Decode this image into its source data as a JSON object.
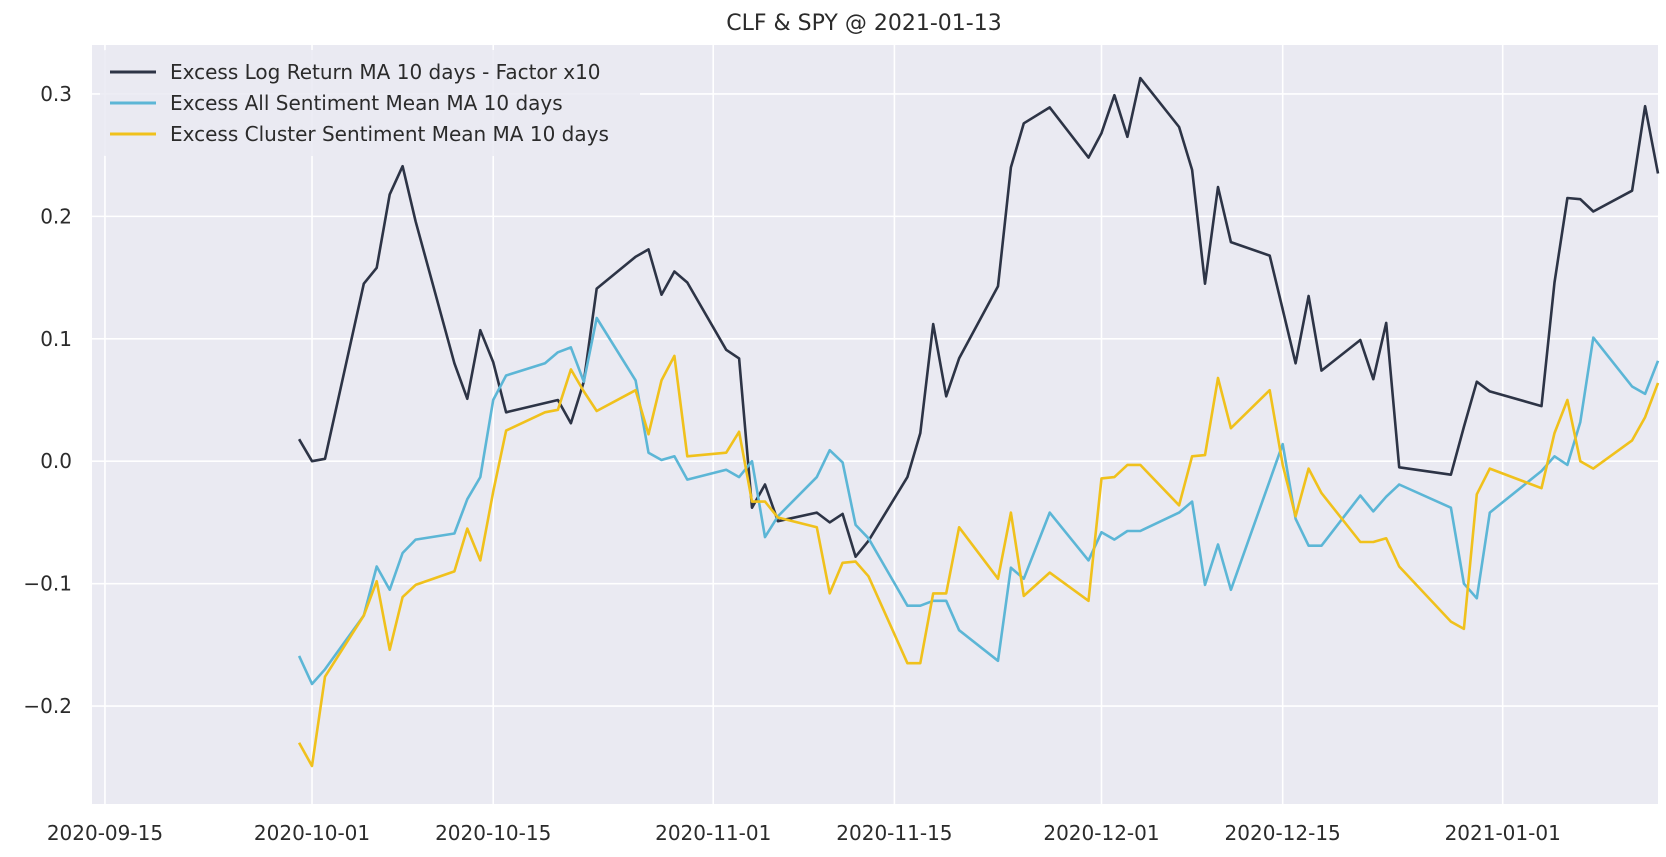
{
  "chart_data": {
    "type": "line",
    "title": "CLF & SPY @ 2021-01-13",
    "xlabel": "",
    "ylabel": "",
    "xlim": [
      "2020-09-14",
      "2021-01-13"
    ],
    "ylim": [
      -0.28,
      0.34
    ],
    "grid": true,
    "legend_position": "top-left",
    "background": "#eaeaf2",
    "x_ticks": [
      "2020-09-15",
      "2020-10-01",
      "2020-10-15",
      "2020-11-01",
      "2020-11-15",
      "2020-12-01",
      "2020-12-15",
      "2021-01-01"
    ],
    "y_ticks": [
      -0.2,
      -0.1,
      0.0,
      0.1,
      0.2,
      0.3
    ],
    "y_tick_labels": [
      "−0.2",
      "−0.1",
      "0.0",
      "0.1",
      "0.2",
      "0.3"
    ],
    "series": [
      {
        "name": "Excess Log Return MA 10 days - Factor x10",
        "color": "#2d3446",
        "points": [
          [
            "2020-09-30",
            0.018
          ],
          [
            "2020-10-01",
            0.0
          ],
          [
            "2020-10-02",
            0.002
          ],
          [
            "2020-10-05",
            0.145
          ],
          [
            "2020-10-06",
            0.158
          ],
          [
            "2020-10-07",
            0.218
          ],
          [
            "2020-10-08",
            0.241
          ],
          [
            "2020-10-09",
            0.196
          ],
          [
            "2020-10-12",
            0.08
          ],
          [
            "2020-10-13",
            0.051
          ],
          [
            "2020-10-14",
            0.107
          ],
          [
            "2020-10-15",
            0.081
          ],
          [
            "2020-10-16",
            0.04
          ],
          [
            "2020-10-20",
            0.05
          ],
          [
            "2020-10-21",
            0.031
          ],
          [
            "2020-10-22",
            0.065
          ],
          [
            "2020-10-23",
            0.141
          ],
          [
            "2020-10-26",
            0.167
          ],
          [
            "2020-10-27",
            0.173
          ],
          [
            "2020-10-28",
            0.136
          ],
          [
            "2020-10-29",
            0.155
          ],
          [
            "2020-10-30",
            0.146
          ],
          [
            "2020-11-02",
            0.091
          ],
          [
            "2020-11-03",
            0.084
          ],
          [
            "2020-11-04",
            -0.038
          ],
          [
            "2020-11-05",
            -0.019
          ],
          [
            "2020-11-06",
            -0.049
          ],
          [
            "2020-11-09",
            -0.042
          ],
          [
            "2020-11-10",
            -0.05
          ],
          [
            "2020-11-11",
            -0.043
          ],
          [
            "2020-11-12",
            -0.078
          ],
          [
            "2020-11-13",
            -0.065
          ],
          [
            "2020-11-16",
            -0.013
          ],
          [
            "2020-11-17",
            0.023
          ],
          [
            "2020-11-18",
            0.112
          ],
          [
            "2020-11-19",
            0.053
          ],
          [
            "2020-11-20",
            0.084
          ],
          [
            "2020-11-23",
            0.143
          ],
          [
            "2020-11-24",
            0.24
          ],
          [
            "2020-11-25",
            0.276
          ],
          [
            "2020-11-27",
            0.289
          ],
          [
            "2020-11-30",
            0.248
          ],
          [
            "2020-12-01",
            0.268
          ],
          [
            "2020-12-02",
            0.299
          ],
          [
            "2020-12-03",
            0.265
          ],
          [
            "2020-12-04",
            0.313
          ],
          [
            "2020-12-07",
            0.273
          ],
          [
            "2020-12-08",
            0.238
          ],
          [
            "2020-12-09",
            0.145
          ],
          [
            "2020-12-10",
            0.224
          ],
          [
            "2020-12-11",
            0.179
          ],
          [
            "2020-12-14",
            0.168
          ],
          [
            "2020-12-15",
            0.124
          ],
          [
            "2020-12-16",
            0.08
          ],
          [
            "2020-12-17",
            0.135
          ],
          [
            "2020-12-18",
            0.074
          ],
          [
            "2020-12-21",
            0.099
          ],
          [
            "2020-12-22",
            0.067
          ],
          [
            "2020-12-23",
            0.113
          ],
          [
            "2020-12-24",
            -0.005
          ],
          [
            "2020-12-28",
            -0.011
          ],
          [
            "2020-12-29",
            0.028
          ],
          [
            "2020-12-30",
            0.065
          ],
          [
            "2020-12-31",
            0.057
          ],
          [
            "2021-01-04",
            0.045
          ],
          [
            "2021-01-05",
            0.146
          ],
          [
            "2021-01-06",
            0.215
          ],
          [
            "2021-01-07",
            0.214
          ],
          [
            "2021-01-08",
            0.204
          ],
          [
            "2021-01-11",
            0.221
          ],
          [
            "2021-01-12",
            0.29
          ],
          [
            "2021-01-13",
            0.235
          ]
        ]
      },
      {
        "name": "Excess All Sentiment Mean MA 10 days",
        "color": "#5cb6d6",
        "points": [
          [
            "2020-09-30",
            -0.159
          ],
          [
            "2020-10-01",
            -0.182
          ],
          [
            "2020-10-02",
            -0.17
          ],
          [
            "2020-10-05",
            -0.126
          ],
          [
            "2020-10-06",
            -0.086
          ],
          [
            "2020-10-07",
            -0.105
          ],
          [
            "2020-10-08",
            -0.075
          ],
          [
            "2020-10-09",
            -0.064
          ],
          [
            "2020-10-12",
            -0.059
          ],
          [
            "2020-10-13",
            -0.031
          ],
          [
            "2020-10-14",
            -0.013
          ],
          [
            "2020-10-15",
            0.05
          ],
          [
            "2020-10-16",
            0.07
          ],
          [
            "2020-10-19",
            0.08
          ],
          [
            "2020-10-20",
            0.089
          ],
          [
            "2020-10-21",
            0.093
          ],
          [
            "2020-10-22",
            0.065
          ],
          [
            "2020-10-23",
            0.117
          ],
          [
            "2020-10-26",
            0.066
          ],
          [
            "2020-10-27",
            0.007
          ],
          [
            "2020-10-28",
            0.001
          ],
          [
            "2020-10-29",
            0.004
          ],
          [
            "2020-10-30",
            -0.015
          ],
          [
            "2020-11-02",
            -0.007
          ],
          [
            "2020-11-03",
            -0.013
          ],
          [
            "2020-11-04",
            0.0
          ],
          [
            "2020-11-05",
            -0.062
          ],
          [
            "2020-11-06",
            -0.045
          ],
          [
            "2020-11-09",
            -0.013
          ],
          [
            "2020-11-10",
            0.009
          ],
          [
            "2020-11-11",
            -0.001
          ],
          [
            "2020-11-12",
            -0.052
          ],
          [
            "2020-11-13",
            -0.063
          ],
          [
            "2020-11-16",
            -0.118
          ],
          [
            "2020-11-17",
            -0.118
          ],
          [
            "2020-11-18",
            -0.114
          ],
          [
            "2020-11-19",
            -0.114
          ],
          [
            "2020-11-20",
            -0.138
          ],
          [
            "2020-11-23",
            -0.163
          ],
          [
            "2020-11-24",
            -0.087
          ],
          [
            "2020-11-25",
            -0.096
          ],
          [
            "2020-11-27",
            -0.042
          ],
          [
            "2020-11-30",
            -0.081
          ],
          [
            "2020-12-01",
            -0.058
          ],
          [
            "2020-12-02",
            -0.064
          ],
          [
            "2020-12-03",
            -0.057
          ],
          [
            "2020-12-04",
            -0.057
          ],
          [
            "2020-12-07",
            -0.042
          ],
          [
            "2020-12-08",
            -0.033
          ],
          [
            "2020-12-09",
            -0.101
          ],
          [
            "2020-12-10",
            -0.068
          ],
          [
            "2020-12-11",
            -0.105
          ],
          [
            "2020-12-14",
            -0.016
          ],
          [
            "2020-12-15",
            0.014
          ],
          [
            "2020-12-16",
            -0.047
          ],
          [
            "2020-12-17",
            -0.069
          ],
          [
            "2020-12-18",
            -0.069
          ],
          [
            "2020-12-21",
            -0.028
          ],
          [
            "2020-12-22",
            -0.041
          ],
          [
            "2020-12-23",
            -0.029
          ],
          [
            "2020-12-24",
            -0.019
          ],
          [
            "2020-12-28",
            -0.038
          ],
          [
            "2020-12-29",
            -0.1
          ],
          [
            "2020-12-30",
            -0.112
          ],
          [
            "2020-12-31",
            -0.042
          ],
          [
            "2021-01-04",
            -0.008
          ],
          [
            "2021-01-05",
            0.004
          ],
          [
            "2021-01-06",
            -0.003
          ],
          [
            "2021-01-07",
            0.032
          ],
          [
            "2021-01-08",
            0.101
          ],
          [
            "2021-01-11",
            0.061
          ],
          [
            "2021-01-12",
            0.055
          ],
          [
            "2021-01-13",
            0.082
          ]
        ]
      },
      {
        "name": "Excess Cluster Sentiment Mean MA 10 days",
        "color": "#f0c11c",
        "points": [
          [
            "2020-09-30",
            -0.23
          ],
          [
            "2020-10-01",
            -0.249
          ],
          [
            "2020-10-02",
            -0.176
          ],
          [
            "2020-10-05",
            -0.126
          ],
          [
            "2020-10-06",
            -0.098
          ],
          [
            "2020-10-07",
            -0.154
          ],
          [
            "2020-10-08",
            -0.111
          ],
          [
            "2020-10-09",
            -0.101
          ],
          [
            "2020-10-12",
            -0.09
          ],
          [
            "2020-10-13",
            -0.055
          ],
          [
            "2020-10-14",
            -0.081
          ],
          [
            "2020-10-15",
            -0.025
          ],
          [
            "2020-10-16",
            0.025
          ],
          [
            "2020-10-19",
            0.04
          ],
          [
            "2020-10-20",
            0.042
          ],
          [
            "2020-10-21",
            0.075
          ],
          [
            "2020-10-22",
            0.057
          ],
          [
            "2020-10-23",
            0.041
          ],
          [
            "2020-10-26",
            0.058
          ],
          [
            "2020-10-27",
            0.022
          ],
          [
            "2020-10-28",
            0.066
          ],
          [
            "2020-10-29",
            0.086
          ],
          [
            "2020-10-30",
            0.004
          ],
          [
            "2020-11-02",
            0.007
          ],
          [
            "2020-11-03",
            0.024
          ],
          [
            "2020-11-04",
            -0.033
          ],
          [
            "2020-11-05",
            -0.033
          ],
          [
            "2020-11-06",
            -0.046
          ],
          [
            "2020-11-09",
            -0.054
          ],
          [
            "2020-11-10",
            -0.108
          ],
          [
            "2020-11-11",
            -0.083
          ],
          [
            "2020-11-12",
            -0.082
          ],
          [
            "2020-11-13",
            -0.094
          ],
          [
            "2020-11-16",
            -0.165
          ],
          [
            "2020-11-17",
            -0.165
          ],
          [
            "2020-11-18",
            -0.108
          ],
          [
            "2020-11-19",
            -0.108
          ],
          [
            "2020-11-20",
            -0.054
          ],
          [
            "2020-11-23",
            -0.096
          ],
          [
            "2020-11-24",
            -0.042
          ],
          [
            "2020-11-25",
            -0.11
          ],
          [
            "2020-11-27",
            -0.091
          ],
          [
            "2020-11-30",
            -0.114
          ],
          [
            "2020-12-01",
            -0.014
          ],
          [
            "2020-12-02",
            -0.013
          ],
          [
            "2020-12-03",
            -0.003
          ],
          [
            "2020-12-04",
            -0.003
          ],
          [
            "2020-12-07",
            -0.036
          ],
          [
            "2020-12-08",
            0.004
          ],
          [
            "2020-12-09",
            0.005
          ],
          [
            "2020-12-10",
            0.068
          ],
          [
            "2020-12-11",
            0.027
          ],
          [
            "2020-12-14",
            0.058
          ],
          [
            "2020-12-15",
            -0.003
          ],
          [
            "2020-12-16",
            -0.045
          ],
          [
            "2020-12-17",
            -0.006
          ],
          [
            "2020-12-18",
            -0.026
          ],
          [
            "2020-12-21",
            -0.066
          ],
          [
            "2020-12-22",
            -0.066
          ],
          [
            "2020-12-23",
            -0.063
          ],
          [
            "2020-12-24",
            -0.086
          ],
          [
            "2020-12-28",
            -0.131
          ],
          [
            "2020-12-29",
            -0.137
          ],
          [
            "2020-12-30",
            -0.027
          ],
          [
            "2020-12-31",
            -0.006
          ],
          [
            "2021-01-04",
            -0.022
          ],
          [
            "2021-01-05",
            0.023
          ],
          [
            "2021-01-06",
            0.05
          ],
          [
            "2021-01-07",
            0.0
          ],
          [
            "2021-01-08",
            -0.006
          ],
          [
            "2021-01-11",
            0.017
          ],
          [
            "2021-01-12",
            0.036
          ],
          [
            "2021-01-13",
            0.064
          ]
        ]
      }
    ]
  }
}
